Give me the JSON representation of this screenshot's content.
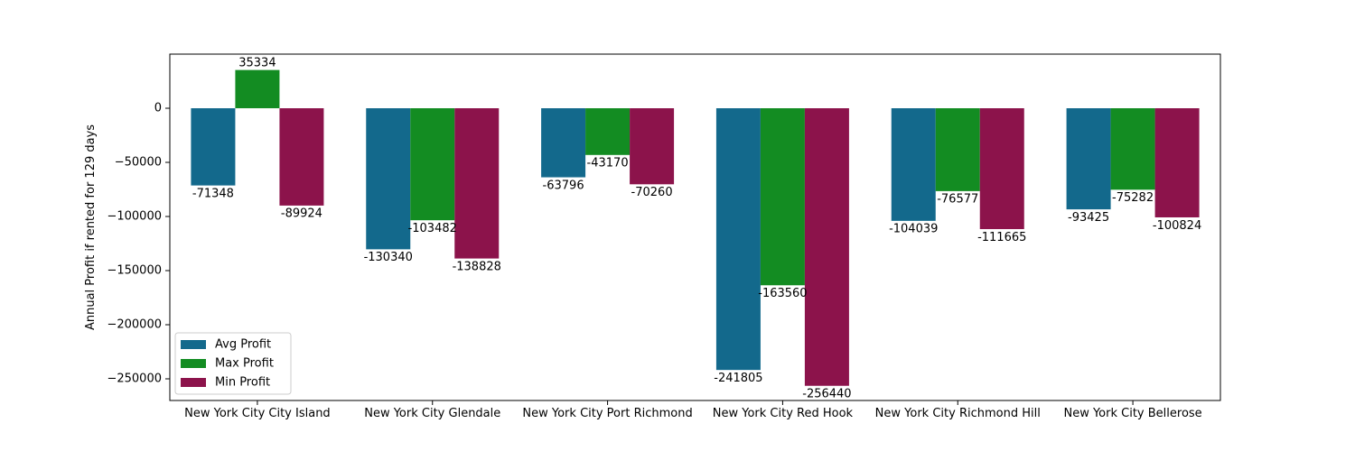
{
  "chart_data": {
    "type": "bar",
    "title": "",
    "xlabel": "",
    "ylabel": "Annual Profit if rented for 129 days",
    "categories": [
      "New York City City Island",
      "New York City Glendale",
      "New York City Port Richmond",
      "New York City Red Hook",
      "New York City Richmond Hill",
      "New York City Bellerose"
    ],
    "series": [
      {
        "name": "Avg Profit",
        "color": "#13698c",
        "values": [
          -71348,
          -130340,
          -63796,
          -241805,
          -104039,
          -93425
        ]
      },
      {
        "name": "Max Profit",
        "color": "#138c22",
        "values": [
          35334,
          -103482,
          -43170,
          -163560,
          -76577,
          -75282
        ]
      },
      {
        "name": "Min Profit",
        "color": "#8c134b",
        "values": [
          -89924,
          -138828,
          -70260,
          -256440,
          -111665,
          -100824
        ]
      }
    ],
    "ylim": [
      -270000,
      50000
    ],
    "yticks": [
      0,
      -50000,
      -100000,
      -150000,
      -200000,
      -250000
    ],
    "ytick_labels": [
      "0",
      "−50000",
      "−100000",
      "−150000",
      "−200000",
      "−250000"
    ],
    "grid": false,
    "legend_position": "bottom-left"
  }
}
